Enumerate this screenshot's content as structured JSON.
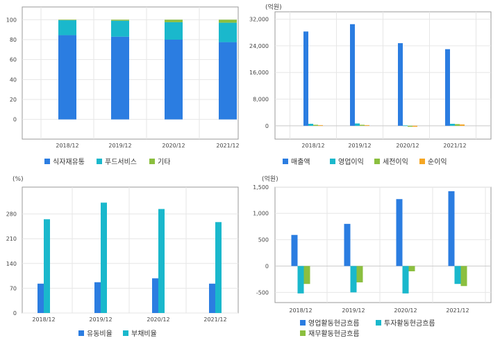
{
  "chart_data": [
    {
      "type": "bar",
      "stacked": true,
      "categories": [
        "2018/12",
        "2019/12",
        "2020/12",
        "2021/12"
      ],
      "series": [
        {
          "name": "식자재유통",
          "values": [
            84.5,
            83,
            80,
            77.5
          ]
        },
        {
          "name": "푸드서비스",
          "values": [
            15,
            16,
            17.5,
            19.5
          ]
        },
        {
          "name": "기타",
          "values": [
            0.5,
            1,
            2.5,
            3
          ]
        }
      ],
      "yticks": [
        0,
        20,
        40,
        60,
        80,
        100
      ],
      "ylim": [
        -10,
        110
      ],
      "unit": "",
      "grid": true,
      "legend": "bottom"
    },
    {
      "type": "bar",
      "categories": [
        "2018/12",
        "2019/12",
        "2020/12",
        "2021/12"
      ],
      "series": [
        {
          "name": "매출액",
          "values": [
            28300,
            30500,
            24800,
            23000
          ]
        },
        {
          "name": "영업이익",
          "values": [
            600,
            700,
            100,
            600
          ]
        },
        {
          "name": "세전이익",
          "values": [
            300,
            300,
            -300,
            500
          ]
        },
        {
          "name": "순이익",
          "values": [
            200,
            200,
            -300,
            400
          ]
        }
      ],
      "yticks": [
        "0",
        "8,000",
        "16,000",
        "24,000",
        "32,000"
      ],
      "ylim": [
        -4000,
        34000
      ],
      "unit": "(억원)",
      "grid": true,
      "legend": "bottom"
    },
    {
      "type": "bar",
      "categories": [
        "2018/12",
        "2019/12",
        "2020/12",
        "2021/12"
      ],
      "series": [
        {
          "name": "유동비율",
          "values": [
            83,
            87,
            98,
            83
          ]
        },
        {
          "name": "부채비율",
          "values": [
            265,
            312,
            294,
            257
          ]
        }
      ],
      "yticks": [
        "0",
        "70",
        "140",
        "210",
        "280"
      ],
      "ylim": [
        0,
        350
      ],
      "unit": "(%)",
      "grid": true,
      "legend": "bottom"
    },
    {
      "type": "bar",
      "categories": [
        "2018/12",
        "2019/12",
        "2020/12",
        "2021/12"
      ],
      "series": [
        {
          "name": "영업활동현금흐름",
          "values": [
            590,
            800,
            1270,
            1420
          ]
        },
        {
          "name": "투자활동현금흐름",
          "values": [
            -520,
            -500,
            -520,
            -340
          ]
        },
        {
          "name": "재무활동현금흐름",
          "values": [
            -340,
            -310,
            -100,
            -380
          ]
        }
      ],
      "yticks": [
        "-500",
        "0",
        "500",
        "1,000",
        "1,500"
      ],
      "ylim": [
        -720,
        1590
      ],
      "unit": "(억원)",
      "grid": true,
      "legend": "bottom"
    }
  ],
  "colors": {
    "blue": "#2b7de1",
    "cyan": "#1ab8cc",
    "green": "#8bbf3f",
    "orange": "#f5a623",
    "grid": "#e6e6e6",
    "axis": "#999999"
  }
}
